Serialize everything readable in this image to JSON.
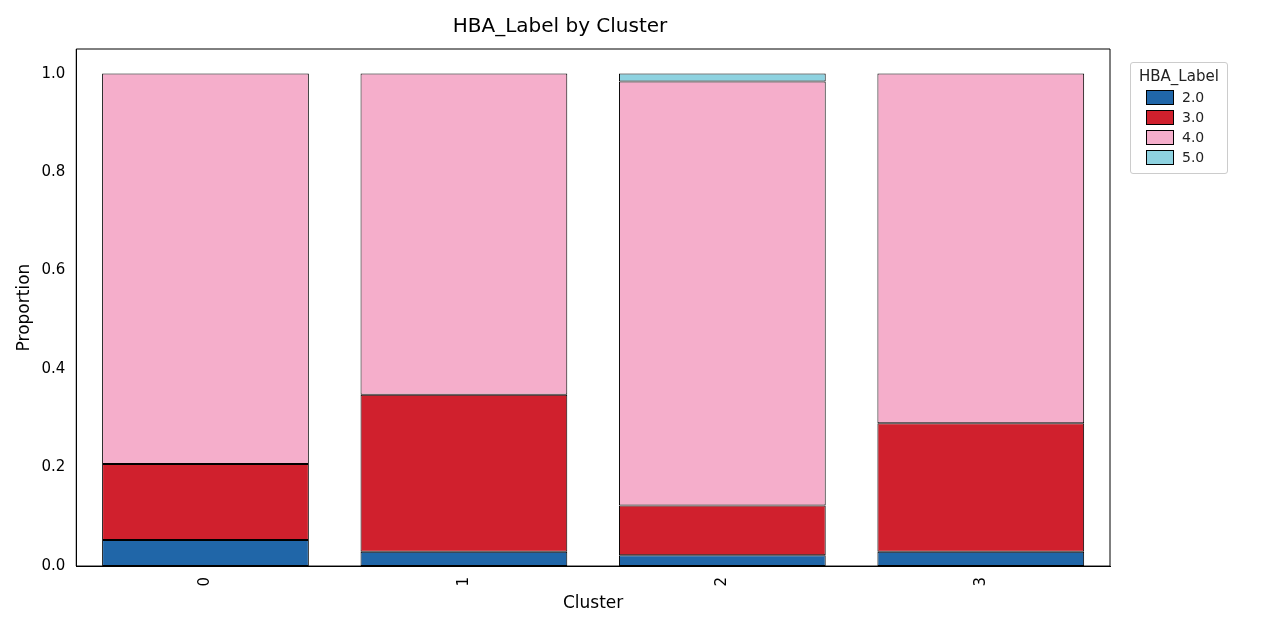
{
  "chart_data": {
    "type": "bar",
    "title": "HBA_Label by Cluster",
    "xlabel": "Cluster",
    "ylabel": "Proportion",
    "legend_title": "HBA_Label",
    "categories": [
      "0",
      "1",
      "2",
      "3"
    ],
    "stacked": true,
    "legend": "top right",
    "grid": false,
    "ylim": [
      0,
      1.05
    ],
    "yticks": [
      {
        "value": 0,
        "label": "0.0"
      },
      {
        "value": 0.2,
        "label": "0.2"
      },
      {
        "value": 0.4,
        "label": "0.4"
      },
      {
        "value": 0.6,
        "label": "0.6"
      },
      {
        "value": 0.8,
        "label": "0.8"
      },
      {
        "value": 1,
        "label": "1.0"
      }
    ],
    "series": [
      {
        "name": "2.0",
        "color": "#2066a8",
        "values": [
          0.053,
          0.029,
          0.022,
          0.029
        ]
      },
      {
        "name": "3.0",
        "color": "#d0202d",
        "values": [
          0.154,
          0.319,
          0.101,
          0.261
        ]
      },
      {
        "name": "4.0",
        "color": "#f5aecb",
        "values": [
          0.793,
          0.652,
          0.861,
          0.71
        ]
      },
      {
        "name": "5.0",
        "color": "#8ed2e0",
        "values": [
          0,
          0,
          0.016,
          0
        ]
      }
    ]
  }
}
